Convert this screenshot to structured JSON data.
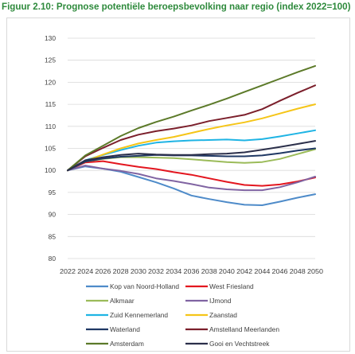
{
  "title": "Figuur 2.10: Prognose potentiële beroepsbevolking naar regio (index 2022=100)",
  "chart_data": {
    "type": "line",
    "title": "Figuur 2.10: Prognose potentiële beroepsbevolking naar regio (index 2022=100)",
    "xlabel": "",
    "ylabel": "",
    "x": [
      "2022",
      "2024",
      "2026",
      "2028",
      "2030",
      "2032",
      "2034",
      "2036",
      "2038",
      "2040",
      "2042",
      "2044",
      "2046",
      "2048",
      "2050"
    ],
    "ylim": [
      80,
      130
    ],
    "yticks": [
      80,
      85,
      90,
      95,
      100,
      105,
      110,
      115,
      120,
      125,
      130
    ],
    "grid": true,
    "legend": "bottom",
    "series": [
      {
        "name": "Kop van Noord-Holland",
        "color": "#4e8bc9",
        "values": [
          100,
          100.9,
          100.4,
          99.7,
          98.5,
          97.3,
          95.9,
          94.3,
          93.5,
          92.8,
          92.2,
          92.1,
          92.9,
          93.8,
          94.6
        ]
      },
      {
        "name": "West Friesland",
        "color": "#e3161f",
        "values": [
          100,
          101.8,
          102.1,
          101.4,
          100.8,
          100.3,
          99.6,
          99.0,
          98.2,
          97.4,
          96.7,
          96.5,
          96.8,
          97.5,
          98.4
        ]
      },
      {
        "name": "Alkmaar",
        "color": "#9bbb59",
        "values": [
          100,
          102.0,
          102.6,
          103.0,
          103.0,
          102.9,
          102.8,
          102.5,
          102.2,
          101.9,
          101.7,
          101.9,
          102.6,
          103.7,
          104.8
        ]
      },
      {
        "name": "IJmond",
        "color": "#8064a2",
        "values": [
          100,
          101.1,
          100.4,
          99.9,
          99.2,
          98.2,
          97.6,
          96.9,
          96.1,
          95.7,
          95.5,
          95.5,
          96.2,
          97.3,
          98.6
        ]
      },
      {
        "name": "Zuid Kennemerland",
        "color": "#1fb4e4",
        "values": [
          100,
          102.3,
          103.5,
          104.6,
          105.6,
          106.3,
          106.6,
          106.8,
          106.9,
          107.0,
          106.8,
          107.1,
          107.7,
          108.4,
          109.1
        ]
      },
      {
        "name": "Zaanstad",
        "color": "#f5c518",
        "values": [
          100,
          102.1,
          103.6,
          105.0,
          106.1,
          106.9,
          107.6,
          108.5,
          109.4,
          110.2,
          110.9,
          111.8,
          112.9,
          114.0,
          115.0
        ]
      },
      {
        "name": "Waterland",
        "color": "#1f3864",
        "values": [
          100,
          102.0,
          102.7,
          103.1,
          103.3,
          103.5,
          103.4,
          103.4,
          103.3,
          103.2,
          103.2,
          103.4,
          103.9,
          104.5,
          105.0
        ]
      },
      {
        "name": "Amstelland Meerlanden",
        "color": "#7b1f2b",
        "values": [
          100,
          103.2,
          105.1,
          106.9,
          108.1,
          108.9,
          109.5,
          110.2,
          111.2,
          111.9,
          112.6,
          113.9,
          115.8,
          117.6,
          119.3
        ]
      },
      {
        "name": "Amsterdam",
        "color": "#5c7a29",
        "values": [
          100,
          103.4,
          105.6,
          107.8,
          109.6,
          111.0,
          112.2,
          113.6,
          114.9,
          116.3,
          117.8,
          119.3,
          120.8,
          122.3,
          123.7
        ]
      },
      {
        "name": "Gooi en Vechtstreek",
        "color": "#2b2f4a",
        "values": [
          100,
          102.3,
          103.0,
          103.5,
          103.8,
          103.6,
          103.5,
          103.5,
          103.7,
          103.8,
          104.1,
          104.7,
          105.3,
          106.0,
          106.7
        ]
      }
    ]
  }
}
